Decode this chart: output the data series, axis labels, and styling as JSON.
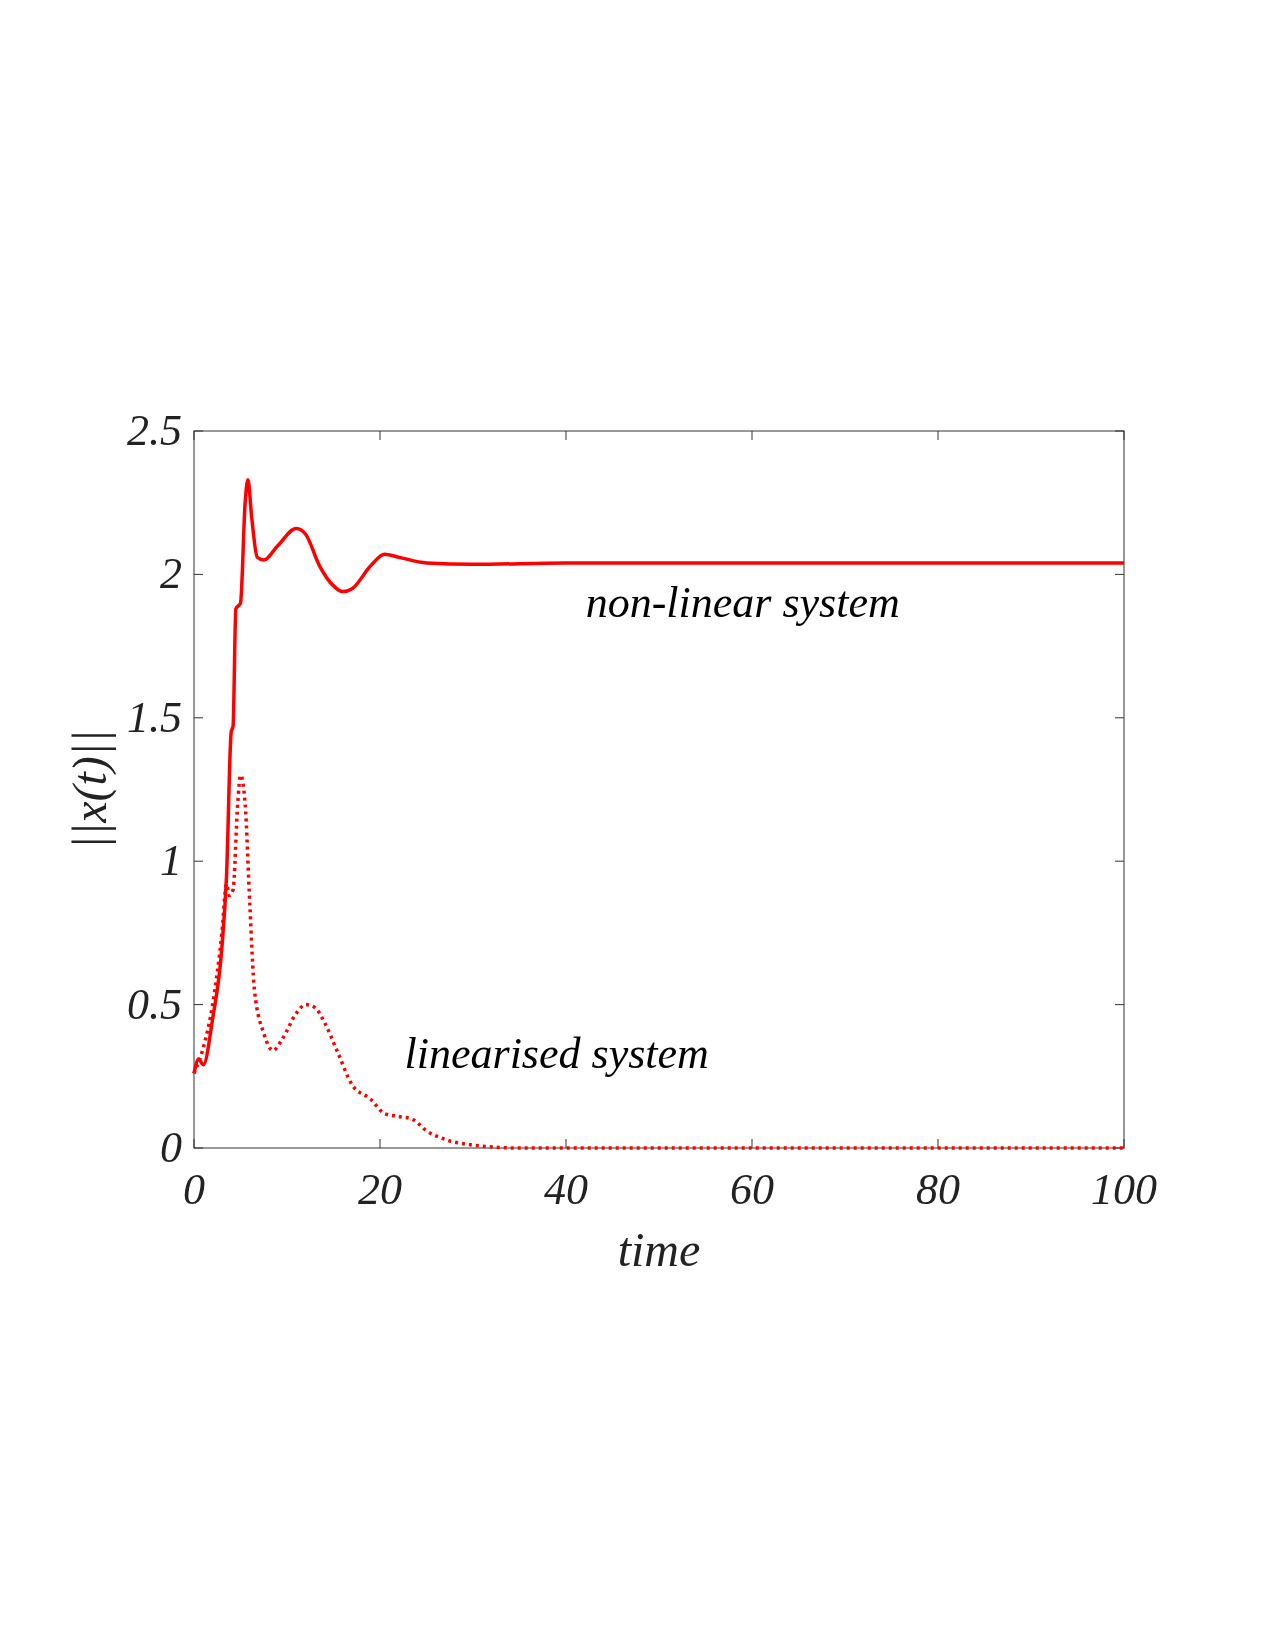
{
  "chart_data": {
    "type": "line",
    "xlabel": "time",
    "ylabel": "||x(t)||",
    "xlim": [
      0,
      100
    ],
    "ylim": [
      0,
      2.5
    ],
    "xticks": [
      0,
      20,
      40,
      60,
      80,
      100
    ],
    "yticks": [
      0,
      0.5,
      1,
      1.5,
      2,
      2.5
    ],
    "grid": false,
    "series": [
      {
        "name": "non-linear system",
        "color": "#ff0000",
        "line_style": "solid",
        "x": [
          0,
          0.5,
          1,
          2,
          3,
          3.5,
          4,
          4.2,
          4.5,
          5,
          5.5,
          5.8,
          6.2,
          6.8,
          7.5,
          9,
          11,
          12,
          13.5,
          15,
          16,
          17,
          19,
          20.5,
          22,
          25,
          30,
          40,
          100
        ],
        "values": [
          0.26,
          0.31,
          0.29,
          0.45,
          0.7,
          0.95,
          1.45,
          1.47,
          1.88,
          1.9,
          2.25,
          2.33,
          2.2,
          2.06,
          2.05,
          2.1,
          2.16,
          2.14,
          2.03,
          1.96,
          1.94,
          1.95,
          2.03,
          2.07,
          2.06,
          2.04,
          2.035,
          2.04,
          2.04
        ]
      },
      {
        "name": "linearised system",
        "color": "#ff0000",
        "line_style": "dotted",
        "x": [
          0,
          1,
          2,
          3,
          3.5,
          3.8,
          4.2,
          4.7,
          5,
          5.5,
          6,
          6.5,
          7.5,
          8.5,
          9.5,
          11,
          12,
          13,
          14,
          15.5,
          17,
          19,
          20.5,
          22,
          23.5,
          25,
          27,
          30,
          35,
          100
        ],
        "values": [
          0.26,
          0.35,
          0.5,
          0.75,
          0.92,
          0.88,
          0.9,
          1.2,
          1.3,
          1.2,
          0.85,
          0.55,
          0.4,
          0.34,
          0.38,
          0.47,
          0.5,
          0.49,
          0.44,
          0.33,
          0.22,
          0.17,
          0.12,
          0.11,
          0.1,
          0.06,
          0.03,
          0.01,
          0,
          0
        ]
      }
    ]
  }
}
